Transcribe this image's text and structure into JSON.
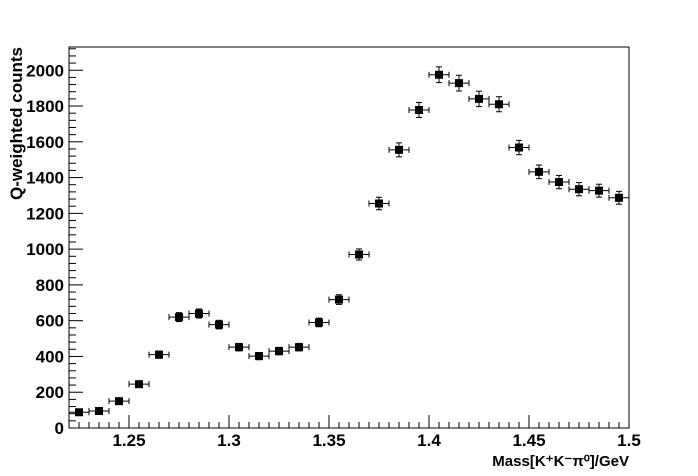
{
  "chart_data": {
    "type": "scatter",
    "title": "",
    "xlabel": "Mass[K⁺K⁻π⁰]/GeV",
    "ylabel": "Q-weighted counts",
    "xlim": [
      1.22,
      1.5
    ],
    "ylim": [
      0,
      2130
    ],
    "x_ticks": [
      1.25,
      1.3,
      1.35,
      1.4,
      1.45,
      1.5
    ],
    "x_tick_labels": [
      "1.25",
      "1.3",
      "1.35",
      "1.4",
      "1.45",
      "1.5"
    ],
    "y_ticks": [
      0,
      200,
      400,
      600,
      800,
      1000,
      1200,
      1400,
      1600,
      1800,
      2000
    ],
    "y_tick_labels": [
      "0",
      "200",
      "400",
      "600",
      "800",
      "1000",
      "1200",
      "1400",
      "1600",
      "1800",
      "2000"
    ],
    "bin_half_width": 0.005,
    "grid": false,
    "marker": "filled-square",
    "color": "#000000",
    "series": [
      {
        "x": [
          1.225,
          1.235,
          1.245,
          1.255,
          1.265,
          1.275,
          1.285,
          1.295,
          1.305,
          1.315,
          1.325,
          1.335,
          1.345,
          1.355,
          1.365,
          1.375,
          1.385,
          1.395,
          1.405,
          1.415,
          1.425,
          1.435,
          1.445,
          1.455,
          1.465,
          1.475,
          1.485,
          1.495
        ],
        "y": [
          88,
          95,
          150,
          245,
          410,
          620,
          640,
          578,
          452,
          402,
          430,
          452,
          590,
          718,
          970,
          1255,
          1555,
          1778,
          1975,
          1928,
          1840,
          1810,
          1568,
          1432,
          1375,
          1335,
          1327,
          1287
        ],
        "yerr": [
          10,
          10,
          12,
          16,
          20,
          25,
          25,
          24,
          21,
          20,
          21,
          21,
          24,
          27,
          31,
          35,
          39,
          42,
          44,
          44,
          43,
          42,
          40,
          38,
          37,
          37,
          36,
          36
        ]
      }
    ]
  }
}
